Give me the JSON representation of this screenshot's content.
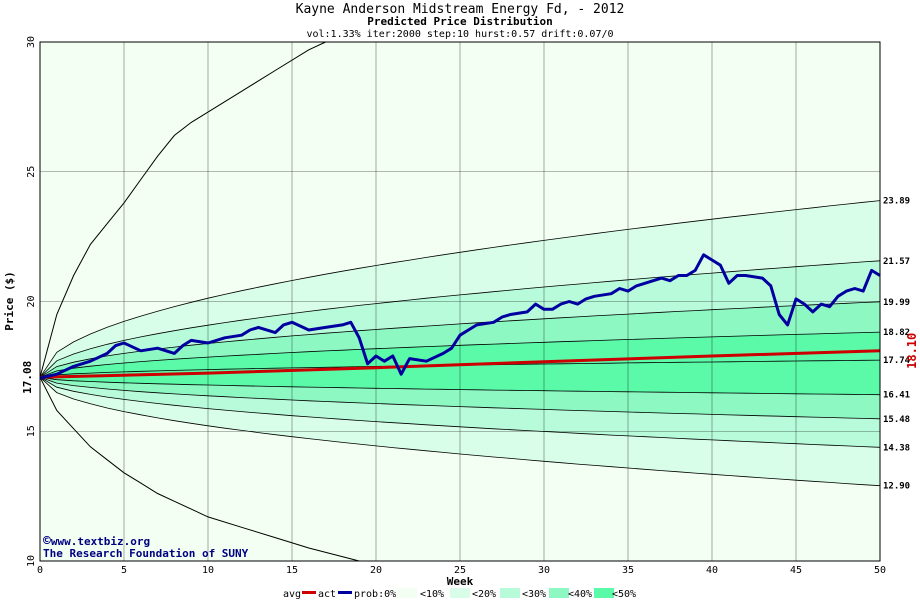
{
  "chart_data": {
    "type": "line",
    "title": "Kayne Anderson Midstream Energy Fd, - 2012",
    "subtitle": "Predicted Price Distribution",
    "params": "vol:1.33% iter:2000 step:10 hurst:0.57 drift:0.07/0",
    "xlabel": "Week",
    "ylabel": "Price ($)",
    "xlim": [
      0,
      50
    ],
    "ylim": [
      10,
      30
    ],
    "x_ticks": [
      0,
      5,
      10,
      15,
      20,
      25,
      30,
      35,
      40,
      45,
      50
    ],
    "y_ticks": [
      10,
      15,
      20,
      25,
      30
    ],
    "grid": true,
    "start_price_label": "17.08",
    "start_price": 17.08,
    "end_avg_label": "18.10",
    "end_avg": 18.1,
    "percentile_labels": [
      "23.89",
      "21.57",
      "19.99",
      "18.82",
      "17.74",
      "16.41",
      "15.48",
      "14.38",
      "12.90"
    ],
    "percentile_end_values": [
      23.89,
      21.57,
      19.99,
      18.82,
      17.74,
      16.41,
      15.48,
      14.38,
      12.9
    ],
    "outer_upper": [
      [
        0,
        17.08
      ],
      [
        1,
        19.5
      ],
      [
        2,
        21.0
      ],
      [
        3,
        22.2
      ],
      [
        4,
        23.0
      ],
      [
        5,
        23.8
      ],
      [
        6,
        24.7
      ],
      [
        7,
        25.6
      ],
      [
        8,
        26.4
      ],
      [
        9,
        26.9
      ],
      [
        10,
        27.3
      ],
      [
        12,
        28.1
      ],
      [
        14,
        28.9
      ],
      [
        16,
        29.7
      ],
      [
        17,
        30.0
      ]
    ],
    "outer_lower": [
      [
        0,
        17.08
      ],
      [
        1,
        15.8
      ],
      [
        2,
        15.1
      ],
      [
        3,
        14.4
      ],
      [
        4,
        13.9
      ],
      [
        5,
        13.4
      ],
      [
        6,
        13.0
      ],
      [
        7,
        12.6
      ],
      [
        8,
        12.3
      ],
      [
        9,
        12.0
      ],
      [
        10,
        11.7
      ],
      [
        12,
        11.3
      ],
      [
        14,
        10.9
      ],
      [
        16,
        10.5
      ],
      [
        19,
        10.0
      ]
    ],
    "average": [
      [
        0,
        17.08
      ],
      [
        10,
        17.24
      ],
      [
        20,
        17.45
      ],
      [
        30,
        17.68
      ],
      [
        40,
        17.9
      ],
      [
        50,
        18.1
      ]
    ],
    "actual": [
      [
        0,
        17.05
      ],
      [
        1,
        17.2
      ],
      [
        2,
        17.5
      ],
      [
        3,
        17.7
      ],
      [
        4,
        18.0
      ],
      [
        4.5,
        18.3
      ],
      [
        5,
        18.4
      ],
      [
        6,
        18.1
      ],
      [
        7,
        18.2
      ],
      [
        8,
        18.0
      ],
      [
        8.5,
        18.3
      ],
      [
        9,
        18.5
      ],
      [
        10,
        18.4
      ],
      [
        11,
        18.6
      ],
      [
        12,
        18.7
      ],
      [
        12.5,
        18.9
      ],
      [
        13,
        19.0
      ],
      [
        14,
        18.8
      ],
      [
        14.5,
        19.1
      ],
      [
        15,
        19.2
      ],
      [
        16,
        18.9
      ],
      [
        17,
        19.0
      ],
      [
        18,
        19.1
      ],
      [
        18.5,
        19.2
      ],
      [
        19,
        18.6
      ],
      [
        19.5,
        17.6
      ],
      [
        20,
        17.9
      ],
      [
        20.5,
        17.7
      ],
      [
        21,
        17.9
      ],
      [
        21.5,
        17.2
      ],
      [
        22,
        17.8
      ],
      [
        23,
        17.7
      ],
      [
        24,
        18.0
      ],
      [
        24.5,
        18.2
      ],
      [
        25,
        18.7
      ],
      [
        25.5,
        18.9
      ],
      [
        26,
        19.1
      ],
      [
        27,
        19.2
      ],
      [
        27.5,
        19.4
      ],
      [
        28,
        19.5
      ],
      [
        29,
        19.6
      ],
      [
        29.5,
        19.9
      ],
      [
        30,
        19.7
      ],
      [
        30.5,
        19.7
      ],
      [
        31,
        19.9
      ],
      [
        31.5,
        20.0
      ],
      [
        32,
        19.9
      ],
      [
        32.5,
        20.1
      ],
      [
        33,
        20.2
      ],
      [
        34,
        20.3
      ],
      [
        34.5,
        20.5
      ],
      [
        35,
        20.4
      ],
      [
        35.5,
        20.6
      ],
      [
        36,
        20.7
      ],
      [
        36.5,
        20.8
      ],
      [
        37,
        20.9
      ],
      [
        37.5,
        20.8
      ],
      [
        38,
        21.0
      ],
      [
        38.5,
        21.0
      ],
      [
        39,
        21.2
      ],
      [
        39.5,
        21.8
      ],
      [
        40,
        21.6
      ],
      [
        40.5,
        21.4
      ],
      [
        41,
        20.7
      ],
      [
        41.5,
        21.0
      ],
      [
        42,
        21.0
      ],
      [
        43,
        20.9
      ],
      [
        43.5,
        20.6
      ],
      [
        44,
        19.5
      ],
      [
        44.5,
        19.1
      ],
      [
        45,
        20.1
      ],
      [
        45.5,
        19.9
      ],
      [
        46,
        19.6
      ],
      [
        46.5,
        19.9
      ],
      [
        47,
        19.8
      ],
      [
        47.5,
        20.2
      ],
      [
        48,
        20.4
      ],
      [
        48.5,
        20.5
      ],
      [
        49,
        20.4
      ],
      [
        49.5,
        21.2
      ],
      [
        50,
        21.0
      ]
    ],
    "series_colors": {
      "actual": "#0000a0",
      "average": "#cc0000"
    },
    "band_colors": [
      "#f2fff2",
      "#d8fde8",
      "#b8fbda",
      "#8ef8c3",
      "#5afaa8"
    ]
  },
  "credits": {
    "copyright_symbol": "©",
    "site": "www.textbiz.org",
    "org": "The Research Foundation of SUNY"
  },
  "legend": {
    "avg": "avg",
    "act": "act",
    "prob": "prob:0%",
    "b10": "<10%",
    "b20": "<20%",
    "b30": "<30%",
    "b40": "<40%",
    "b50": "<50%"
  }
}
